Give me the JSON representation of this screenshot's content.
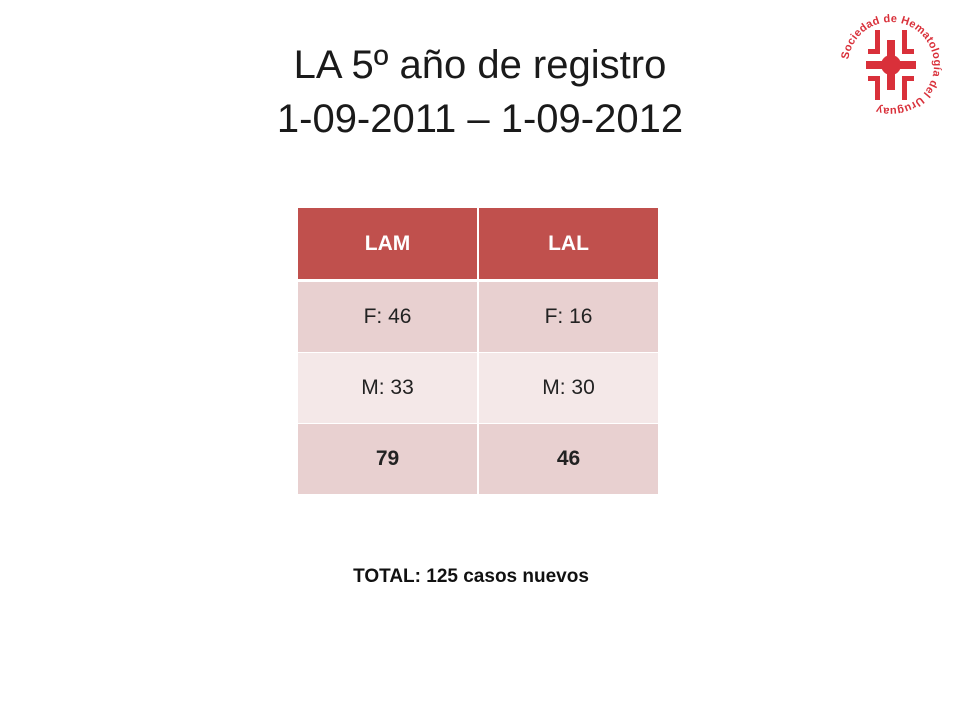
{
  "slide": {
    "title_line1": "LA 5º año de registro",
    "title_line2": "1-09-2011 – 1-09-2012",
    "logo_text": "Sociedad de Hematología del Uruguay",
    "logo_color": "#d9303a"
  },
  "table": {
    "headers": [
      "LAM",
      "LAL"
    ],
    "rows": [
      [
        "F: 46",
        "F: 16"
      ],
      [
        "M: 33",
        "M: 30"
      ],
      [
        "79",
        "46"
      ]
    ],
    "header_color": "#c0504d"
  },
  "total": {
    "label": "TOTAL:",
    "value": "125 casos nuevos"
  }
}
